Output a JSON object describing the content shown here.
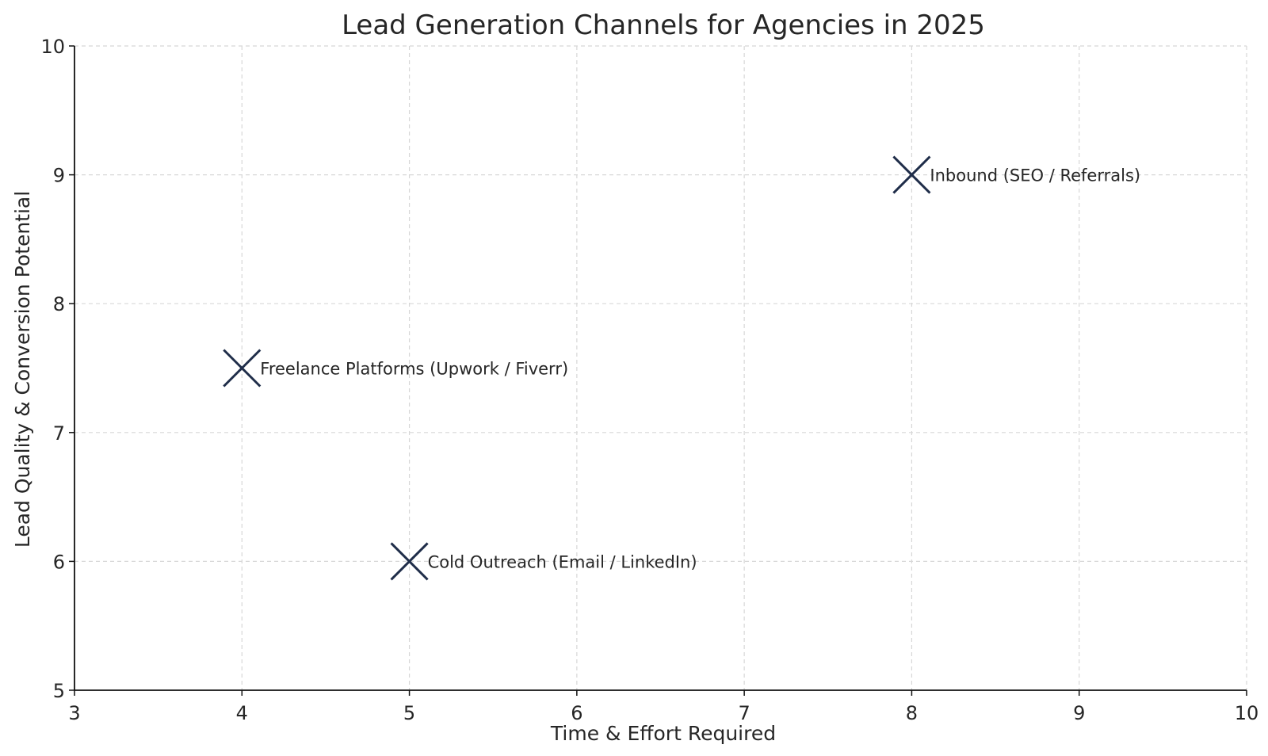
{
  "chart_data": {
    "type": "scatter",
    "title": "Lead Generation Channels for Agencies in 2025",
    "xlabel": "Time & Effort Required",
    "ylabel": "Lead Quality & Conversion Potential",
    "xlim": [
      3,
      10
    ],
    "ylim": [
      5,
      10
    ],
    "x_ticks": [
      "3",
      "4",
      "5",
      "6",
      "7",
      "8",
      "9",
      "10"
    ],
    "y_ticks": [
      "5",
      "6",
      "7",
      "8",
      "9",
      "10"
    ],
    "grid": true,
    "marker": "x",
    "marker_color": "#1f2d49",
    "points": [
      {
        "label": "Inbound (SEO / Referrals)",
        "x": 8,
        "y": 9
      },
      {
        "label": "Freelance Platforms (Upwork / Fiverr)",
        "x": 4,
        "y": 7.5
      },
      {
        "label": "Cold Outreach (Email / LinkedIn)",
        "x": 5,
        "y": 6
      }
    ]
  }
}
